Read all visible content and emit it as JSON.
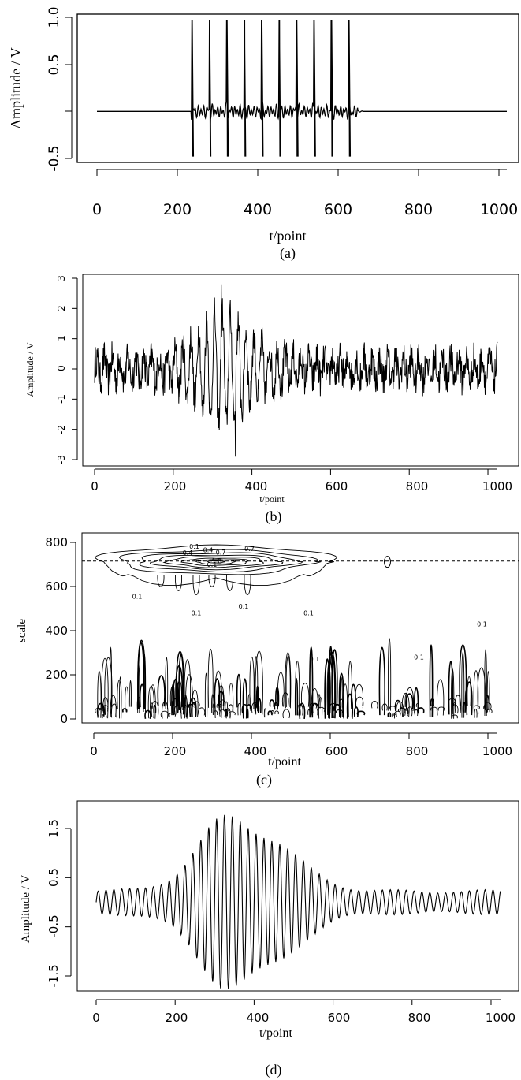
{
  "chart_data": [
    {
      "panel": "a",
      "type": "line",
      "caption": "(a)",
      "xlabel": "t/point",
      "ylabel": "Amplitude / V",
      "xlim": [
        0,
        1024
      ],
      "ylim": [
        -0.5,
        1.0
      ],
      "xticks": [
        "0",
        "200",
        "400",
        "600",
        "800",
        "1000"
      ],
      "yticks": [
        "-0.5",
        "0.5",
        "1.0"
      ],
      "description_values": {
        "baseline": 0.0,
        "pulse_count": 10,
        "pulse_start": 238,
        "pulse_end": 630,
        "pulse_peak": 0.97,
        "pulse_trough": -0.48
      }
    },
    {
      "panel": "b",
      "type": "line",
      "caption": "(b)",
      "xlabel": "t/point",
      "ylabel": "Amplitude / V",
      "xlim": [
        0,
        1024
      ],
      "ylim": [
        -3,
        3
      ],
      "xticks": [
        "0",
        "200",
        "400",
        "600",
        "800",
        "1000"
      ],
      "yticks": [
        "-3",
        "-2",
        "-1",
        "0",
        "1",
        "2",
        "3"
      ],
      "description_values": {
        "max_value": 2.8,
        "max_at": 322,
        "min_value": -2.9,
        "min_at": 358,
        "noise_amplitude": 0.6
      }
    },
    {
      "panel": "c",
      "type": "contour",
      "caption": "(c)",
      "xlabel": "t/point",
      "ylabel": "scale",
      "xlim": [
        0,
        1024
      ],
      "ylim": [
        0,
        800
      ],
      "xticks": [
        "0",
        "200",
        "400",
        "600",
        "800",
        "1000"
      ],
      "yticks": [
        "0",
        "200",
        "400",
        "600",
        "800"
      ],
      "dashed_line_scale": 715,
      "contour_center": [
        310,
        712
      ],
      "contour_labels": [
        "0.1",
        "0.4",
        "0.7",
        "1.0",
        "0.7",
        "0.4",
        "0.1",
        "0.1",
        "0.1",
        "0.1",
        "0.1",
        "0.1",
        "0.1",
        "0.1"
      ]
    },
    {
      "panel": "d",
      "type": "line",
      "caption": "(d)",
      "xlabel": "t/point",
      "ylabel": "Amplitude / V",
      "xlim": [
        0,
        1024
      ],
      "ylim": [
        -1.5,
        1.5
      ],
      "xticks": [
        "0",
        "200",
        "400",
        "600",
        "800",
        "1000"
      ],
      "yticks": [
        "-1.5",
        "-0.5",
        "0.5",
        "1.5"
      ],
      "description_values": {
        "envelope_peak": 1.75,
        "envelope_center": 365,
        "period_points": 20
      }
    }
  ]
}
